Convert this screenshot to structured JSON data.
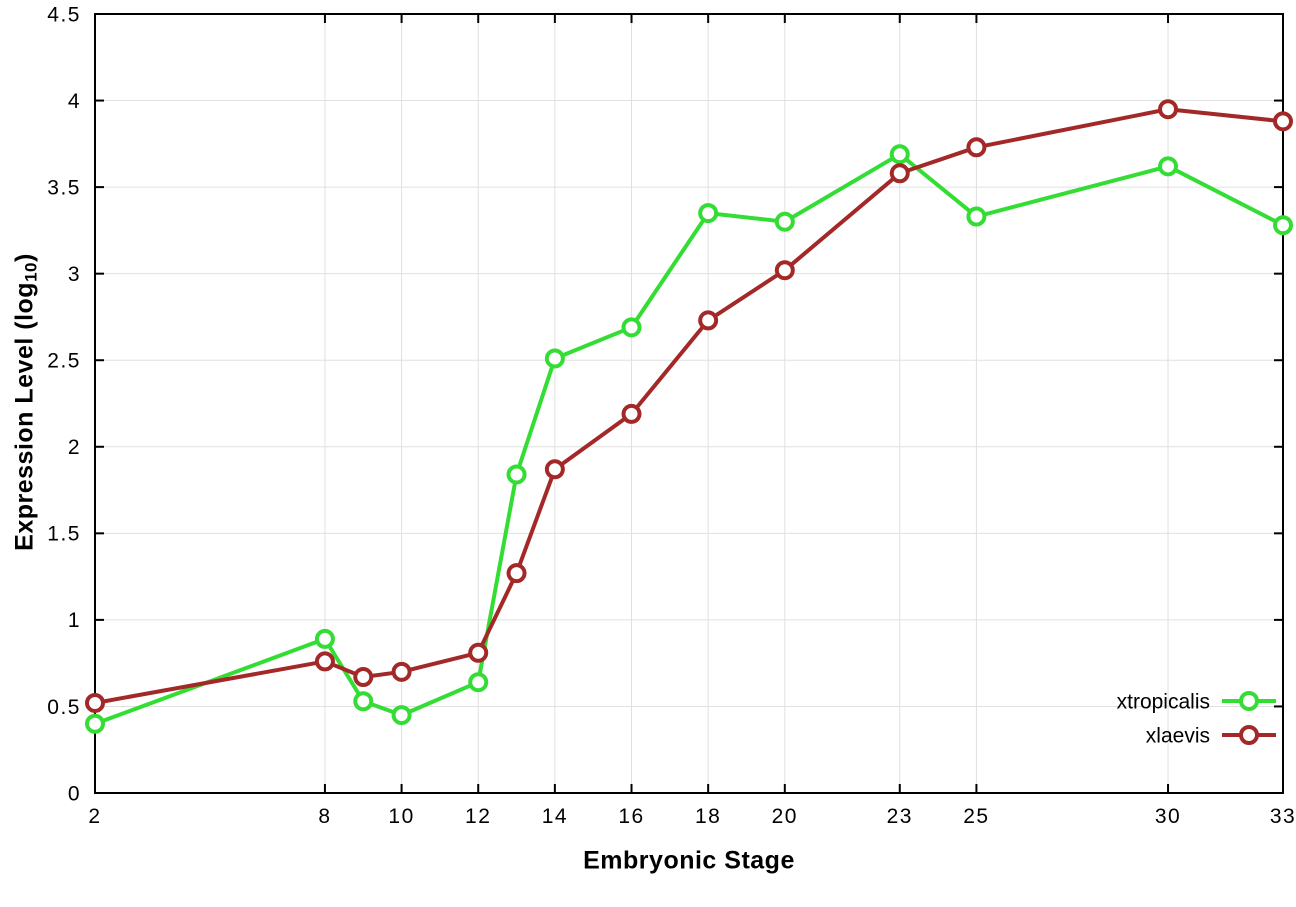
{
  "page": {
    "background": "#ffffff",
    "text_color": "#000000",
    "grid_color": "#e0e0e0",
    "border_color": "#000000"
  },
  "chart_data": {
    "type": "line",
    "title": "",
    "xlabel": "Embryonic Stage",
    "ylabel": {
      "prefix": "Expression Level (log",
      "sub": "10",
      "suffix": ")"
    },
    "xlim": [
      2,
      33
    ],
    "ylim": [
      0,
      4.5
    ],
    "x_ticks": [
      2,
      8,
      10,
      12,
      14,
      16,
      18,
      20,
      23,
      25,
      30,
      33
    ],
    "x_tick_labels": [
      "2",
      "8",
      "10",
      "12",
      "14",
      "16",
      "18",
      "20",
      "23",
      "25",
      "30",
      "33"
    ],
    "y_ticks": [
      0,
      0.5,
      1,
      1.5,
      2,
      2.5,
      3,
      3.5,
      4,
      4.5
    ],
    "y_tick_labels": [
      "0",
      "0.5",
      "1",
      "1.5",
      "2",
      "2.5",
      "3",
      "3.5",
      "4",
      "4.5"
    ],
    "grid": true,
    "legend_position": "bottom-right-inside",
    "marker": {
      "shape": "open-circle",
      "fill": "#ffffff"
    },
    "x": [
      2,
      8,
      9,
      10,
      12,
      13,
      14,
      16,
      18,
      20,
      23,
      25,
      30,
      33
    ],
    "series": [
      {
        "name": "xtropicalis",
        "color": "#33dd33",
        "values": [
          0.4,
          0.89,
          0.53,
          0.45,
          0.64,
          1.84,
          2.51,
          2.69,
          3.35,
          3.3,
          3.69,
          3.33,
          3.62,
          3.28
        ]
      },
      {
        "name": "xlaevis",
        "color": "#a32929",
        "values": [
          0.52,
          0.76,
          0.67,
          0.7,
          0.81,
          1.27,
          1.87,
          2.19,
          2.73,
          3.02,
          3.58,
          3.73,
          3.95,
          3.88
        ]
      }
    ]
  }
}
